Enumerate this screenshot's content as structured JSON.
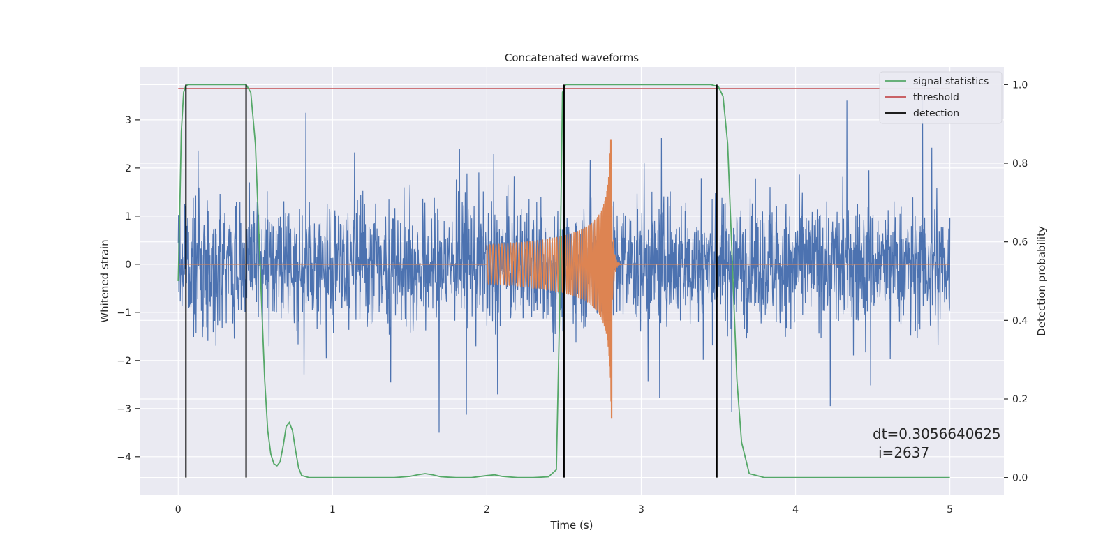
{
  "chart_data": {
    "type": "line",
    "title": "Concatenated waveforms",
    "xlabel": "Time (s)",
    "ylabel": "Whitened strain",
    "y2label": "Detection probability",
    "xlim": [
      -0.25,
      5.35
    ],
    "ylim": [
      -4.8,
      4.1
    ],
    "y2lim": [
      -0.045,
      1.045
    ],
    "xticks": [
      0,
      1,
      2,
      3,
      4,
      5
    ],
    "yticks": [
      -4,
      -3,
      -2,
      -1,
      0,
      1,
      2,
      3
    ],
    "y2ticks": [
      0.0,
      0.2,
      0.4,
      0.6,
      0.8,
      1.0
    ],
    "x_tick_labels": [
      "0",
      "1",
      "2",
      "3",
      "4",
      "5"
    ],
    "y_tick_labels": [
      "−4",
      "−3",
      "−2",
      "−1",
      "0",
      "1",
      "2",
      "3"
    ],
    "y2_tick_labels": [
      "0.0",
      "0.2",
      "0.4",
      "0.6",
      "0.8",
      "1.0"
    ],
    "grid": true,
    "legend_position": "top-right",
    "colors": {
      "plot_background": "#eaeaf2",
      "grid": "#ffffff",
      "strain": "#4c72b0",
      "injected_waveform": "#dd8452",
      "signal_statistics": "#55a868",
      "threshold": "#c44e52",
      "detection": "#000000"
    },
    "series": [
      {
        "name": "signal statistics",
        "axis": "right",
        "x": [
          0,
          0.01,
          0.02,
          0.035,
          0.05,
          0.07,
          0.1,
          0.2,
          0.3,
          0.4,
          0.44,
          0.47,
          0.5,
          0.52,
          0.54,
          0.56,
          0.58,
          0.6,
          0.62,
          0.64,
          0.66,
          0.68,
          0.7,
          0.72,
          0.74,
          0.76,
          0.78,
          0.8,
          0.85,
          1.0,
          1.2,
          1.4,
          1.5,
          1.55,
          1.6,
          1.65,
          1.7,
          1.8,
          1.9,
          2.0,
          2.05,
          2.1,
          2.2,
          2.3,
          2.4,
          2.45,
          2.47,
          2.49,
          2.51,
          2.55,
          3.0,
          3.45,
          3.5,
          3.53,
          3.56,
          3.58,
          3.6,
          3.62,
          3.65,
          3.7,
          3.8,
          4.0,
          4.5,
          5.0
        ],
        "values": [
          0.5,
          0.68,
          0.88,
          0.98,
          0.998,
          1.0,
          1.0,
          1.0,
          1.0,
          1.0,
          1.0,
          0.98,
          0.85,
          0.65,
          0.45,
          0.25,
          0.12,
          0.06,
          0.035,
          0.03,
          0.04,
          0.08,
          0.13,
          0.14,
          0.12,
          0.07,
          0.025,
          0.005,
          0.0,
          0.0,
          0.0,
          0.0,
          0.003,
          0.007,
          0.01,
          0.007,
          0.002,
          0.0,
          0.0,
          0.005,
          0.007,
          0.003,
          0.0,
          0.0,
          0.002,
          0.02,
          0.4,
          0.98,
          1.0,
          1.0,
          1.0,
          1.0,
          0.995,
          0.97,
          0.85,
          0.65,
          0.45,
          0.25,
          0.09,
          0.01,
          0.0,
          0.0,
          0.0,
          0.0
        ]
      },
      {
        "name": "threshold",
        "axis": "right",
        "x": [
          0,
          5
        ],
        "values": [
          0.99,
          0.99
        ]
      },
      {
        "name": "detection",
        "axis": "right",
        "x": [
          0.05,
          0.44,
          2.5,
          3.49
        ],
        "range": [
          0,
          1
        ]
      }
    ],
    "annotations": [
      "dt=0.3056640625",
      "i=2637"
    ]
  }
}
